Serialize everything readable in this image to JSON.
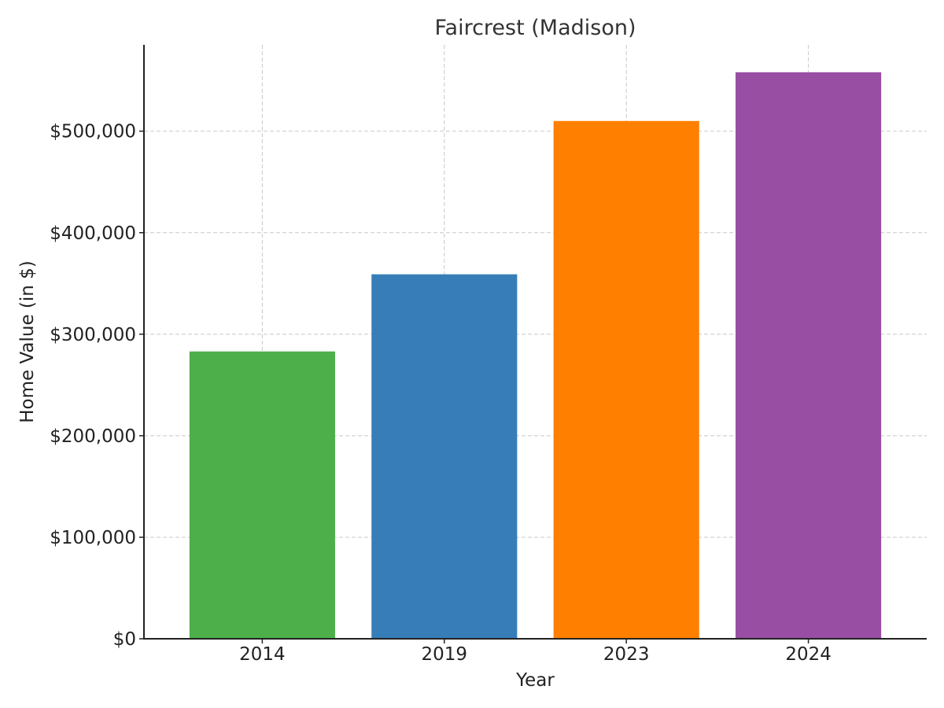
{
  "chart_data": {
    "type": "bar",
    "title": "Faircrest (Madison)",
    "xlabel": "Year",
    "ylabel": "Home Value (in $)",
    "categories": [
      "2014",
      "2019",
      "2023",
      "2024"
    ],
    "values": [
      283000,
      359000,
      510000,
      558000
    ],
    "colors": [
      "#4daf4a",
      "#377eb8",
      "#ff7f00",
      "#984ea3"
    ],
    "ylim": [
      0,
      585000
    ],
    "yticks": [
      0,
      100000,
      200000,
      300000,
      400000,
      500000
    ],
    "ytick_labels": [
      "$0",
      "$100,000",
      "$200,000",
      "$300,000",
      "$400,000",
      "$500,000"
    ],
    "grid": true,
    "legend": false
  }
}
